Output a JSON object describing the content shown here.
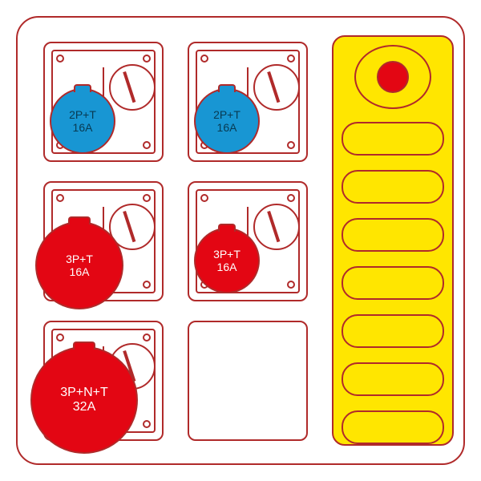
{
  "colors": {
    "outline": "#b02a2a",
    "yellow": "#ffe600",
    "red": "#e30613",
    "blue": "#1896d3",
    "white": "#ffffff"
  },
  "layout": {
    "panel_size": [
      560,
      560
    ],
    "socket_grid": {
      "cols": [
        32,
        212
      ],
      "rows": [
        30,
        204,
        378
      ]
    },
    "switch_panel": {
      "slots": 7
    }
  },
  "sockets": [
    {
      "row": 0,
      "col": 0,
      "size": "md",
      "color": "blue",
      "line1": "2P+T",
      "line2": "16A"
    },
    {
      "row": 0,
      "col": 1,
      "size": "md",
      "color": "blue",
      "line1": "2P+T",
      "line2": "16A"
    },
    {
      "row": 1,
      "col": 0,
      "size": "lg",
      "color": "red",
      "line1": "3P+T",
      "line2": "16A"
    },
    {
      "row": 1,
      "col": 1,
      "size": "md",
      "color": "red",
      "line1": "3P+T",
      "line2": "16A"
    },
    {
      "row": 2,
      "col": 0,
      "size": "xl",
      "color": "red",
      "line1": "3P+N+T",
      "line2": "32A"
    }
  ],
  "empty_slot": {
    "row": 2,
    "col": 1
  },
  "estop": {
    "color": "red"
  }
}
